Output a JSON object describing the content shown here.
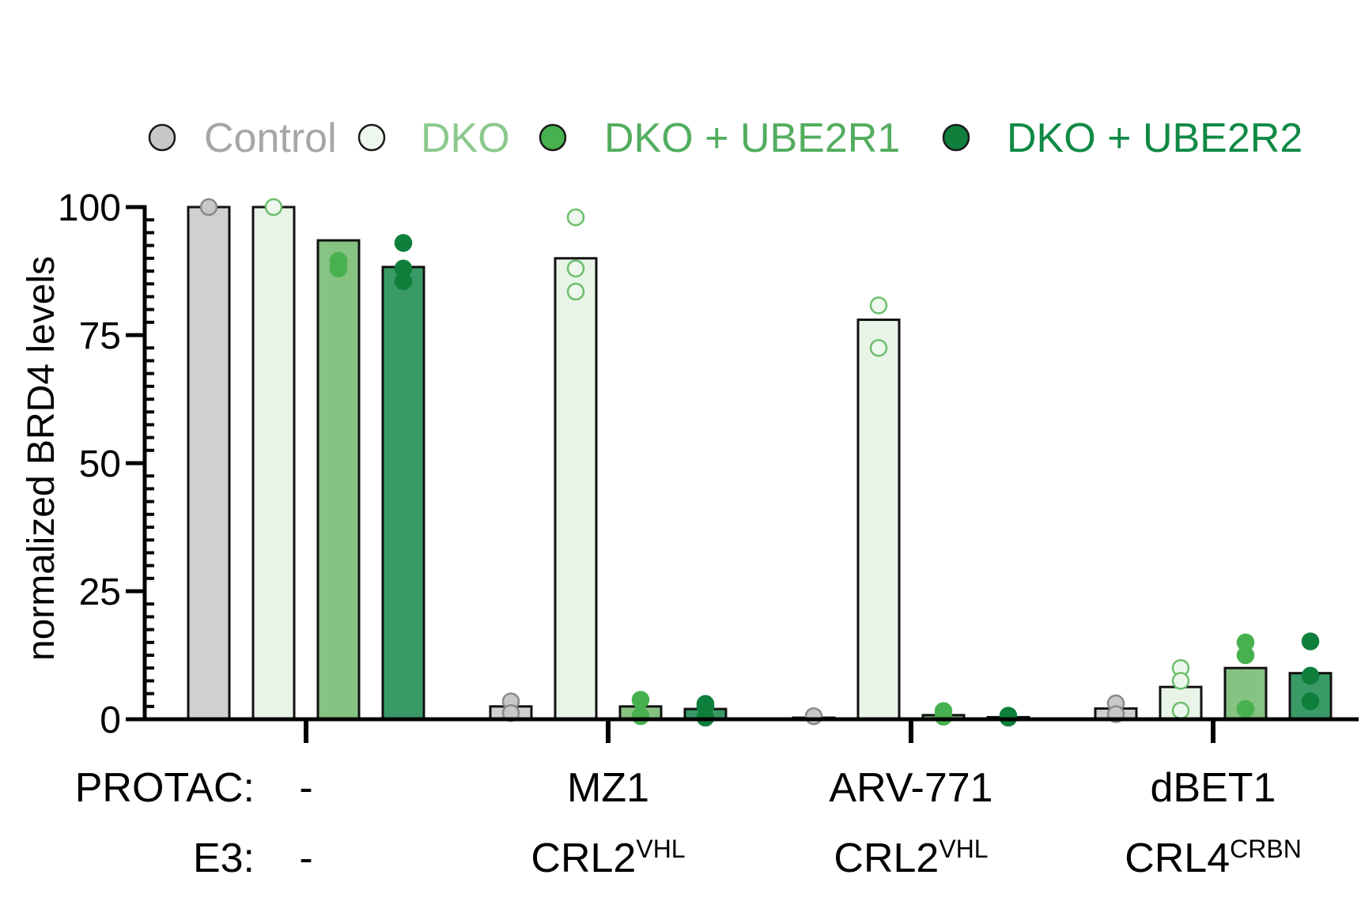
{
  "chart_data": {
    "type": "bar",
    "ylabel": "normalized BRD4 levels",
    "ylim": [
      0,
      100
    ],
    "yticks": [
      0,
      25,
      50,
      75,
      100
    ],
    "legend_position": "top",
    "series": [
      {
        "name": "Control",
        "bar_fill": "#d0d0d0",
        "point_fill": "#c8c8c8",
        "point_stroke": "#8a8a8a",
        "label_color": "#a6a6a6",
        "hollow": false
      },
      {
        "name": "DKO",
        "bar_fill": "#e9f4e8",
        "point_fill": "#eef7ed",
        "point_stroke": "#6bbf6b",
        "label_color": "#8cc98c",
        "hollow": true
      },
      {
        "name": "DKO + UBE2R1",
        "bar_fill": "#86c282",
        "point_fill": "#47b14f",
        "point_stroke": "#47b14f",
        "label_color": "#52ad5e",
        "hollow": false
      },
      {
        "name": "DKO + UBE2R2",
        "bar_fill": "#3a9a66",
        "point_fill": "#0f7f3c",
        "point_stroke": "#0f7f3c",
        "label_color": "#0f8a45",
        "hollow": false
      }
    ],
    "groups": [
      {
        "row_label_protac": "PROTAC:",
        "row_label_e3": "E3:",
        "protac": "-",
        "e3": "-",
        "e3_sup": "",
        "bars": [
          {
            "series": "Control",
            "mean": 100,
            "points": [
              100
            ]
          },
          {
            "series": "DKO",
            "mean": 100,
            "points": [
              100
            ]
          },
          {
            "series": "DKO + UBE2R1",
            "mean": 93.5,
            "points": [
              89.5,
              88
            ]
          },
          {
            "series": "DKO + UBE2R2",
            "mean": 88.3,
            "points": [
              93,
              88,
              85.5
            ]
          }
        ]
      },
      {
        "protac": "MZ1",
        "e3": "CRL2",
        "e3_sup": "VHL",
        "bars": [
          {
            "series": "Control",
            "mean": 2.5,
            "points": [
              3.5,
              1.2
            ]
          },
          {
            "series": "DKO",
            "mean": 90,
            "points": [
              98,
              88,
              83.5
            ]
          },
          {
            "series": "DKO + UBE2R1",
            "mean": 2.5,
            "points": [
              3.8,
              0.6
            ]
          },
          {
            "series": "DKO + UBE2R2",
            "mean": 2,
            "points": [
              3,
              2.5,
              0.3
            ]
          }
        ]
      },
      {
        "protac": "ARV-771",
        "e3": "CRL2",
        "e3_sup": "VHL",
        "bars": [
          {
            "series": "Control",
            "mean": 0.3,
            "points": [
              0.6
            ]
          },
          {
            "series": "DKO",
            "mean": 78,
            "points": [
              80.8,
              72.5
            ]
          },
          {
            "series": "DKO + UBE2R1",
            "mean": 0.8,
            "points": [
              1.6,
              0.5
            ]
          },
          {
            "series": "DKO + UBE2R2",
            "mean": 0.4,
            "points": [
              0.7,
              0.3
            ]
          }
        ]
      },
      {
        "protac": "dBET1",
        "e3": "CRL4",
        "e3_sup": "CRBN",
        "bars": [
          {
            "series": "Control",
            "mean": 2.1,
            "points": [
              3.1,
              1
            ]
          },
          {
            "series": "DKO",
            "mean": 6.3,
            "points": [
              10,
              7.5,
              1.7
            ]
          },
          {
            "series": "DKO + UBE2R1",
            "mean": 10,
            "points": [
              15,
              12.5,
              2
            ]
          },
          {
            "series": "DKO + UBE2R2",
            "mean": 9,
            "points": [
              15.2,
              8.5,
              3.5
            ]
          }
        ]
      }
    ]
  }
}
